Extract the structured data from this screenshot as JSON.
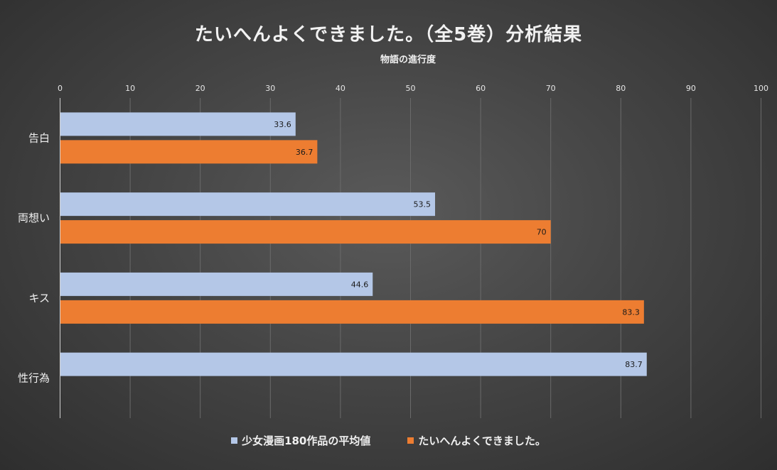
{
  "chart_data": {
    "type": "bar",
    "orientation": "horizontal",
    "title": "たいへんよくできました。（全5巻）分析結果",
    "xlabel": "物語の進行度",
    "ylabel": "",
    "xlim": [
      0,
      100
    ],
    "xticks": [
      "0",
      "10",
      "20",
      "30",
      "40",
      "50",
      "60",
      "70",
      "80",
      "90",
      "100"
    ],
    "categories": [
      "告白",
      "両想い",
      "キス",
      "性行為"
    ],
    "series": [
      {
        "name": "少女漫画180作品の平均値",
        "color": "#b4c7e7",
        "values": [
          33.6,
          53.5,
          44.6,
          83.7
        ],
        "labels": [
          "33.6",
          "53.5",
          "44.6",
          "83.7"
        ]
      },
      {
        "name": "たいへんよくできました。",
        "color": "#ed7d31",
        "values": [
          36.7,
          70,
          83.3,
          null
        ],
        "labels": [
          "36.7",
          "70",
          "83.3",
          ""
        ]
      }
    ],
    "grid": true,
    "legend_position": "bottom"
  }
}
